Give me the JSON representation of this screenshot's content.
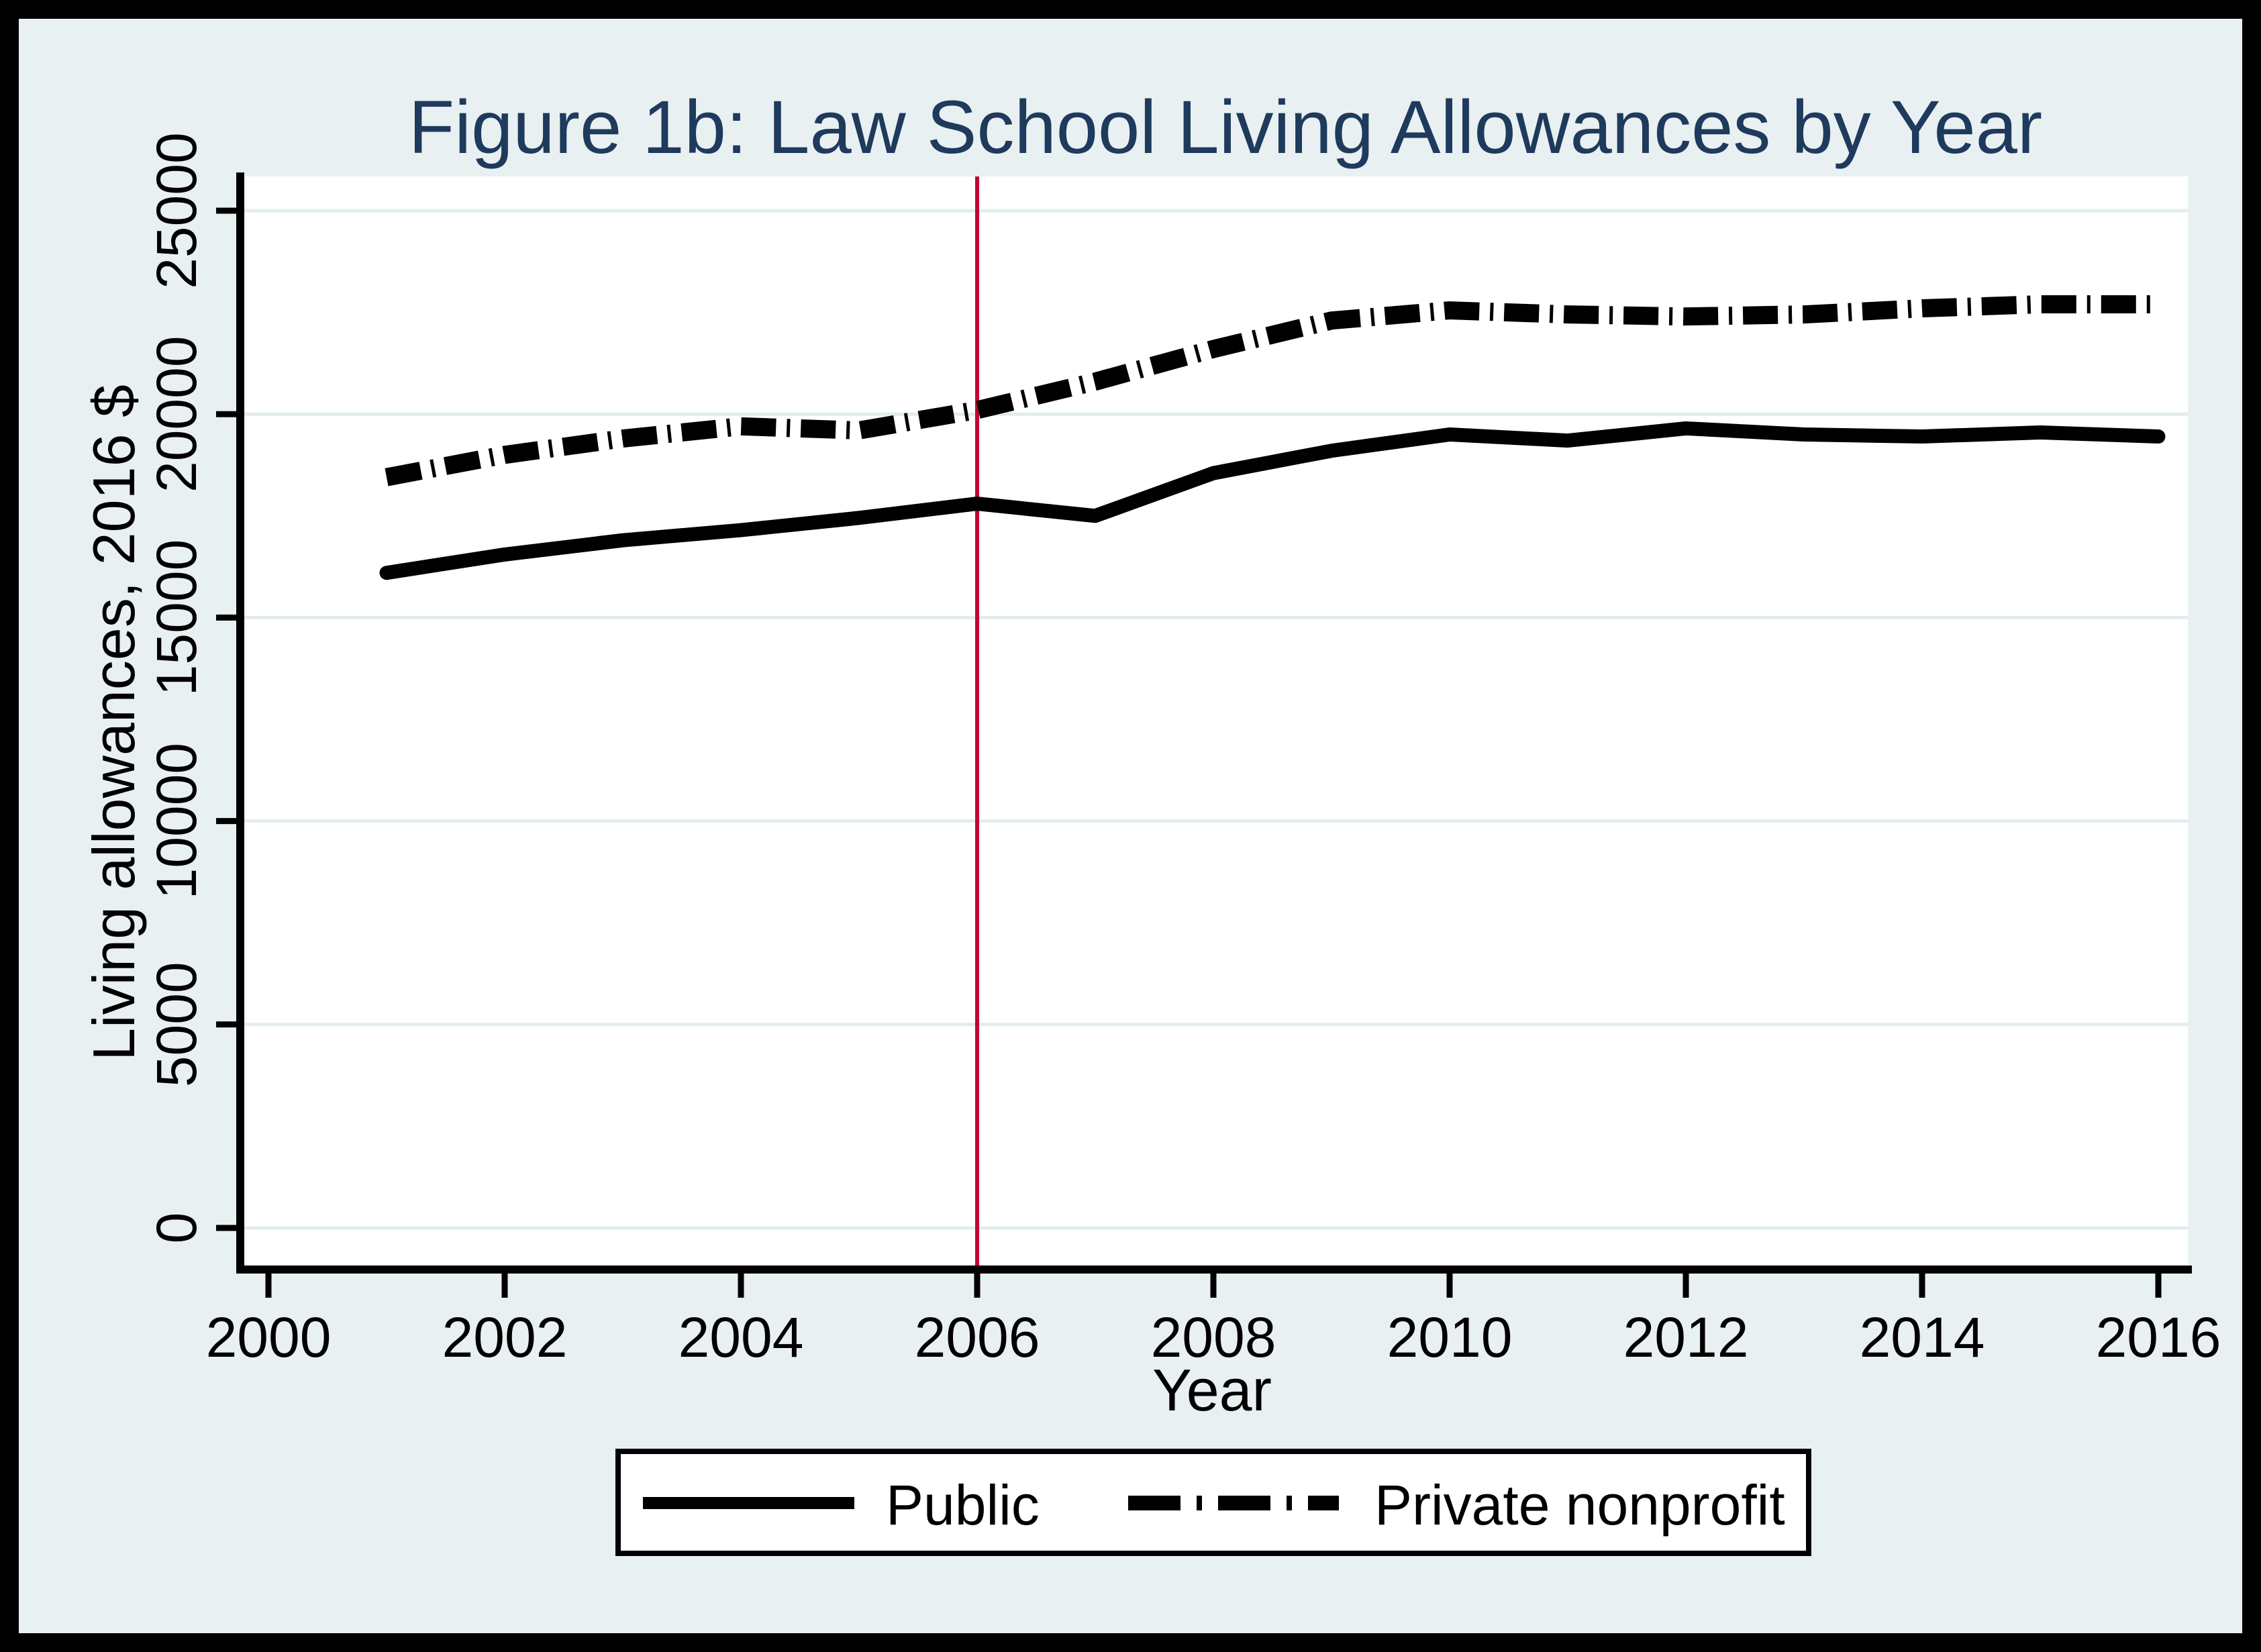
{
  "chart_data": {
    "type": "line",
    "title": "Figure 1b: Law School Living Allowances by Year",
    "xlabel": "Year",
    "ylabel": "Living allowances, 2016 $",
    "x": [
      2001,
      2002,
      2003,
      2004,
      2005,
      2006,
      2007,
      2008,
      2009,
      2010,
      2011,
      2012,
      2013,
      2014,
      2015,
      2016
    ],
    "series": [
      {
        "name": "Public",
        "line_style": "solid",
        "color": "#000000",
        "values": [
          16100,
          16550,
          16900,
          17150,
          17450,
          17800,
          17500,
          18550,
          19100,
          19500,
          19350,
          19650,
          19500,
          19450,
          19550,
          19450
        ]
      },
      {
        "name": "Private nonprofit",
        "line_style": "dash-dot",
        "color": "#000000",
        "values": [
          18450,
          19000,
          19400,
          19700,
          19600,
          20100,
          20800,
          21600,
          22300,
          22550,
          22450,
          22400,
          22450,
          22600,
          22700,
          22700
        ]
      }
    ],
    "x_axis": {
      "ticks": [
        2000,
        2002,
        2004,
        2006,
        2008,
        2010,
        2012,
        2014,
        2016
      ],
      "range": [
        1999.76,
        2016.25
      ]
    },
    "y_axis": {
      "ticks": [
        0,
        5000,
        10000,
        15000,
        20000,
        25000
      ],
      "range": [
        0,
        25840
      ],
      "grid": true
    },
    "reference_line": {
      "orientation": "vertical",
      "x": 2006,
      "color": "#c10534"
    },
    "legend": {
      "position": "bottom-center",
      "border": true
    },
    "colors": {
      "background": "#e9f0f2",
      "plot_background": "#ffffff",
      "gridline": "#e2ecef",
      "title": "#1e3a5c",
      "axis": "#000000",
      "reference_line": "#c10534",
      "series": "#000000"
    }
  }
}
